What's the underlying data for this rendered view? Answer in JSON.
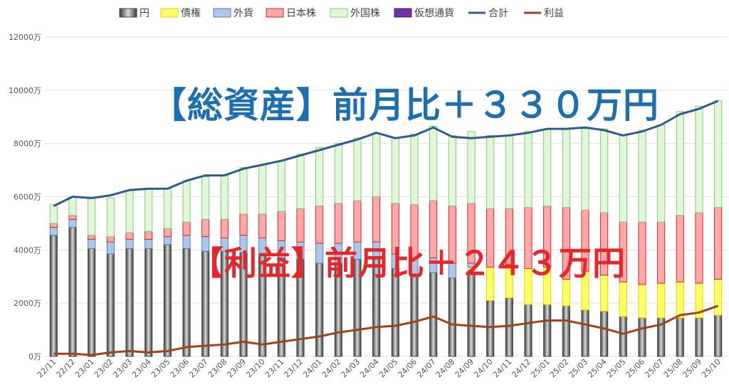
{
  "headlines": {
    "total": "【総資産】前月比＋３３０万円",
    "profit": "【利益】前月比＋２４３万円"
  },
  "chart_data": {
    "type": "bar",
    "stacked": true,
    "y_unit": "万",
    "ylim": [
      0,
      12000
    ],
    "yticks": [
      "0万",
      "2000万",
      "4000万",
      "6000万",
      "8000万",
      "10000万",
      "12000万"
    ],
    "legend_position": "top",
    "grid": true,
    "categories": [
      "22/11",
      "22/12",
      "23/01",
      "23/02",
      "23/03",
      "23/04",
      "23/05",
      "23/06",
      "23/07",
      "23/08",
      "23/09",
      "23/10",
      "23/11",
      "23/12",
      "24/01",
      "24/02",
      "24/03",
      "24/04",
      "24/05",
      "24/06",
      "24/07",
      "24/08",
      "24/09",
      "24/10",
      "24/11",
      "24/12",
      "25/01",
      "25/02",
      "25/03",
      "25/04",
      "25/05",
      "25/06",
      "25/07",
      "25/08",
      "25/09",
      "25/10"
    ],
    "series": [
      {
        "name": "円",
        "kind": "bar",
        "color": "#777777",
        "values": [
          4550,
          4850,
          4050,
          3850,
          4050,
          4050,
          4200,
          4050,
          3950,
          3950,
          3900,
          3800,
          3700,
          3650,
          3500,
          3500,
          3650,
          3700,
          3300,
          3100,
          3150,
          2950,
          3200,
          2100,
          2200,
          1950,
          1950,
          1900,
          1750,
          1700,
          1500,
          1450,
          1450,
          1450,
          1450,
          1550
        ]
      },
      {
        "name": "債権",
        "kind": "bar",
        "color": "#ffff66",
        "values": [
          0,
          0,
          0,
          0,
          0,
          0,
          0,
          0,
          0,
          0,
          0,
          0,
          0,
          0,
          0,
          0,
          0,
          0,
          0,
          0,
          0,
          0,
          150,
          1250,
          1250,
          1350,
          1400,
          1000,
          1450,
          1350,
          1300,
          1250,
          1300,
          1350,
          1300,
          1350
        ]
      },
      {
        "name": "外貨",
        "kind": "bar",
        "color": "#aec7e8",
        "values": [
          300,
          300,
          350,
          450,
          350,
          350,
          300,
          500,
          550,
          500,
          650,
          650,
          650,
          650,
          750,
          750,
          650,
          600,
          550,
          600,
          550,
          550,
          150,
          0,
          0,
          0,
          0,
          0,
          0,
          0,
          0,
          0,
          0,
          0,
          0,
          0
        ]
      },
      {
        "name": "日本株",
        "kind": "bar",
        "color": "#ffaaaa",
        "values": [
          150,
          150,
          150,
          200,
          250,
          300,
          300,
          500,
          650,
          700,
          800,
          900,
          1100,
          1250,
          1400,
          1500,
          1550,
          1700,
          1900,
          2000,
          2150,
          2150,
          2250,
          2200,
          2100,
          2300,
          2300,
          2700,
          2300,
          2350,
          2250,
          2350,
          2300,
          2500,
          2650,
          2700
        ]
      },
      {
        "name": "外国株",
        "kind": "bar",
        "color": "#e2f7d9",
        "values": [
          700,
          700,
          1400,
          1450,
          1600,
          1600,
          1500,
          1550,
          1600,
          1650,
          1750,
          1850,
          1900,
          2050,
          2200,
          2250,
          2350,
          2400,
          2450,
          2650,
          2800,
          2650,
          2700,
          2750,
          2750,
          2850,
          2900,
          2950,
          3050,
          3150,
          3250,
          3450,
          3650,
          3900,
          4000,
          4000
        ]
      },
      {
        "name": "仮想通貨",
        "kind": "bar",
        "color": "#7030a0",
        "values": [
          0,
          0,
          0,
          0,
          0,
          0,
          0,
          0,
          0,
          0,
          0,
          0,
          0,
          0,
          0,
          0,
          0,
          0,
          0,
          0,
          0,
          0,
          0,
          0,
          0,
          0,
          0,
          0,
          0,
          0,
          0,
          0,
          0,
          0,
          0,
          0
        ]
      },
      {
        "name": "合計",
        "kind": "line",
        "color": "#2e5d8c",
        "values": [
          5650,
          6000,
          5950,
          6050,
          6250,
          6300,
          6300,
          6600,
          6800,
          6800,
          7050,
          7200,
          7350,
          7550,
          7750,
          7950,
          8150,
          8400,
          8200,
          8300,
          8600,
          8250,
          8200,
          8250,
          8300,
          8400,
          8550,
          8550,
          8600,
          8500,
          8300,
          8450,
          8700,
          9100,
          9300,
          9600
        ]
      },
      {
        "name": "利益",
        "kind": "line",
        "color": "#a0421c",
        "values": [
          100,
          100,
          50,
          150,
          200,
          150,
          200,
          350,
          400,
          450,
          550,
          450,
          550,
          650,
          750,
          900,
          1000,
          1100,
          1150,
          1300,
          1500,
          1200,
          1150,
          1100,
          1150,
          1250,
          1350,
          1350,
          1200,
          1050,
          850,
          1050,
          1200,
          1550,
          1650,
          1900
        ]
      }
    ]
  }
}
